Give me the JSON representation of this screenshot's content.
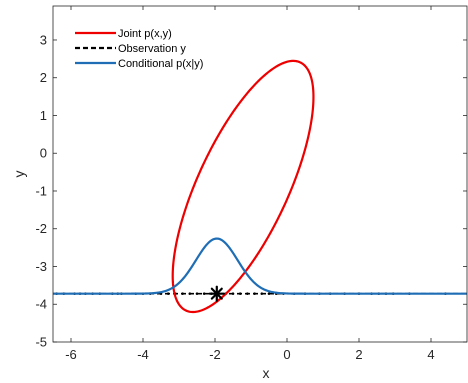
{
  "chart_data": {
    "type": "line",
    "title": "",
    "xlabel": "x",
    "ylabel": "y",
    "xlim": [
      -6.5,
      5
    ],
    "ylim": [
      -5,
      3.9
    ],
    "xticks": [
      -6,
      -4,
      -2,
      0,
      2,
      4
    ],
    "yticks": [
      -5,
      -4,
      -3,
      -2,
      -1,
      0,
      1,
      2,
      3
    ],
    "grid": false,
    "legend_position": "top-left",
    "observation_y": -3.72,
    "marker": {
      "x": -1.95,
      "y": -3.72
    },
    "joint_ellipse": {
      "center": [
        -1.22,
        -0.88
      ],
      "semi_axes": [
        3.65,
        1.25
      ],
      "angle_deg": 64
    },
    "conditional_curve": {
      "mean": -1.95,
      "sd": 0.58,
      "peak_height": 1.46,
      "baseline": -3.72
    },
    "observation_samples_x": [
      -6.4,
      -6.2,
      -5.9,
      -5.75,
      -5.6,
      -5.4,
      -5.2,
      -4.85,
      -4.7,
      -4.6,
      -4.2,
      -4.0,
      -3.8,
      -3.5,
      -3.3,
      -3.1,
      -2.9,
      -2.7,
      -2.5,
      -2.3,
      -2.1,
      -1.9,
      -1.7,
      -1.5,
      -1.3,
      -1.1,
      -0.9,
      -0.7,
      -0.5,
      -0.3,
      -0.1,
      0.2,
      0.5,
      0.9,
      1.2,
      1.6,
      2.0,
      2.35,
      2.55,
      2.75,
      2.95,
      3.4,
      4.4
    ],
    "series": [
      {
        "name": "Joint p(x,y)",
        "color": "#ee0000"
      },
      {
        "name": "Observation y",
        "color": "#000000"
      },
      {
        "name": "Conditional p(x|y)",
        "color": "#1f6eb5"
      }
    ]
  }
}
